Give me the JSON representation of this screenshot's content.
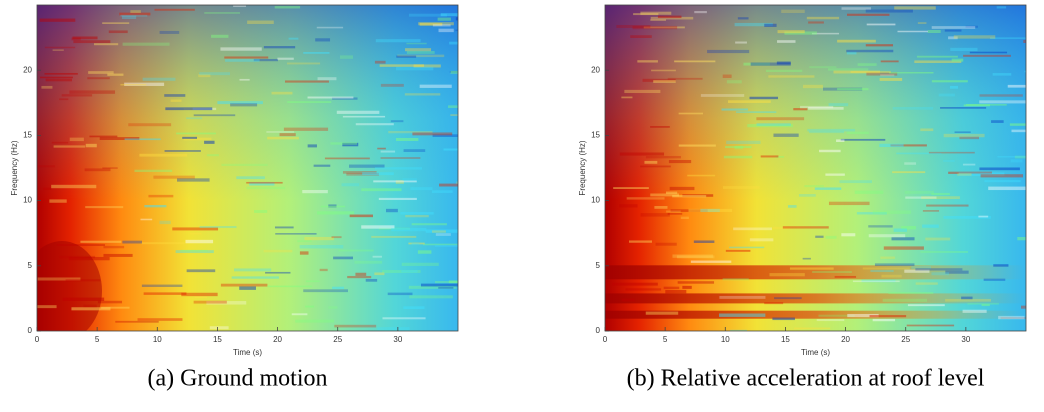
{
  "chart_data": [
    {
      "type": "spectrogram",
      "title": "(a) Ground motion",
      "xlabel": "Time (s)",
      "ylabel": "Frequency (Hz)",
      "xlim": [
        0,
        35
      ],
      "xticks": [
        0,
        5,
        10,
        15,
        20,
        25,
        30
      ],
      "ylim": [
        0,
        25
      ],
      "yticks": [
        0,
        5,
        10,
        15,
        20
      ]
    },
    {
      "type": "spectrogram",
      "title": "(b) Relative acceleration at roof level",
      "xlabel": "Time (s)",
      "ylabel": "Frequency (Hz)",
      "xlim": [
        0,
        35
      ],
      "xticks": [
        0,
        5,
        10,
        15,
        20,
        25,
        30
      ],
      "ylim": [
        0,
        25
      ],
      "yticks": [
        0,
        5,
        10,
        15,
        20
      ]
    }
  ]
}
